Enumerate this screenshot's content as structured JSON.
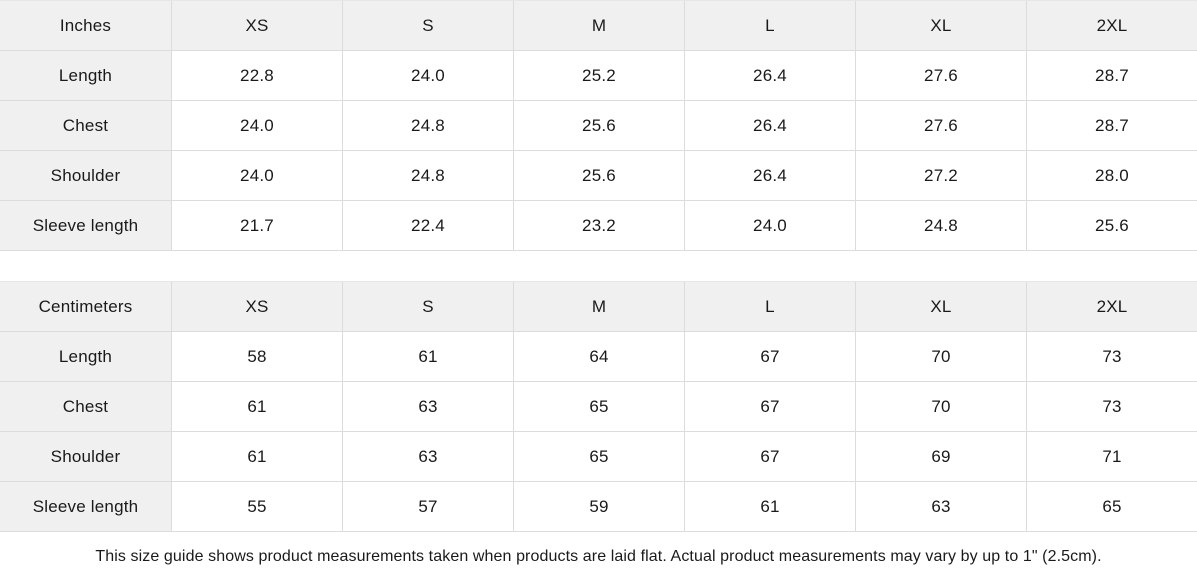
{
  "size_guide": {
    "colors": {
      "header_background": "#f0f0f0",
      "cell_background": "#ffffff",
      "border": "#dcdcdc",
      "text": "#1a1a1a"
    },
    "tables": [
      {
        "unit_label": "Inches",
        "sizes": [
          "XS",
          "S",
          "M",
          "L",
          "XL",
          "2XL"
        ],
        "rows": [
          {
            "label": "Length",
            "values": [
              "22.8",
              "24.0",
              "25.2",
              "26.4",
              "27.6",
              "28.7"
            ]
          },
          {
            "label": "Chest",
            "values": [
              "24.0",
              "24.8",
              "25.6",
              "26.4",
              "27.6",
              "28.7"
            ]
          },
          {
            "label": "Shoulder",
            "values": [
              "24.0",
              "24.8",
              "25.6",
              "26.4",
              "27.2",
              "28.0"
            ]
          },
          {
            "label": "Sleeve length",
            "values": [
              "21.7",
              "22.4",
              "23.2",
              "24.0",
              "24.8",
              "25.6"
            ]
          }
        ]
      },
      {
        "unit_label": "Centimeters",
        "sizes": [
          "XS",
          "S",
          "M",
          "L",
          "XL",
          "2XL"
        ],
        "rows": [
          {
            "label": "Length",
            "values": [
              "58",
              "61",
              "64",
              "67",
              "70",
              "73"
            ]
          },
          {
            "label": "Chest",
            "values": [
              "61",
              "63",
              "65",
              "67",
              "70",
              "73"
            ]
          },
          {
            "label": "Shoulder",
            "values": [
              "61",
              "63",
              "65",
              "67",
              "69",
              "71"
            ]
          },
          {
            "label": "Sleeve length",
            "values": [
              "55",
              "57",
              "59",
              "61",
              "63",
              "65"
            ]
          }
        ]
      }
    ],
    "footnote": "This size guide shows product measurements taken when products are laid flat.  Actual product measurements may vary by up to 1\" (2.5cm)."
  }
}
